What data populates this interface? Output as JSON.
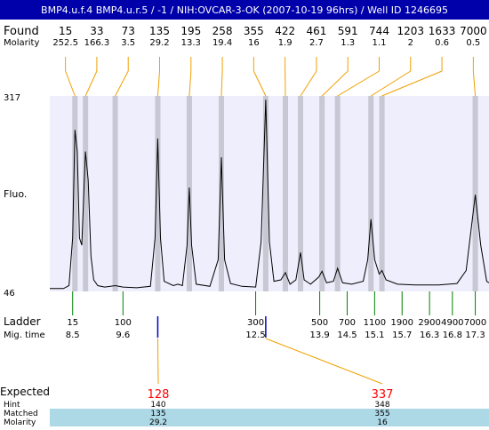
{
  "title": "BMP4.u.f.4  BMP4.u.r.5 / -1 / NIH:OVCAR-3-OK (2007-10-19 96hrs) / Well ID 1246695",
  "labels": {
    "found": "Found",
    "molarity": "Molarity",
    "fluo": "Fluo.",
    "ladder": "Ladder",
    "mig_time": "Mig. time",
    "expected": "Expected",
    "hint": "Hint",
    "matched": "Matched",
    "molarity_bottom": "Molarity"
  },
  "colors": {
    "plot_bg": "#eeeefc",
    "band": "#c8c8d4",
    "title_bar": "#0000aa",
    "connector": "#f0a000",
    "ladder_tick": "#008000",
    "marker_tick": "#0000cc",
    "expected_text": "#ff0000",
    "highlight_row": "#add8e6"
  },
  "chart_data": {
    "type": "line",
    "yaxis": {
      "min": 46,
      "max": 317
    },
    "xaxis": {
      "min": 8.0,
      "max": 17.6,
      "unit": "Mig. time"
    },
    "found_peaks": [
      {
        "size": "15",
        "molarity": "252.5",
        "time": 8.55
      },
      {
        "size": "33",
        "molarity": "166.3",
        "time": 8.78
      },
      {
        "size": "73",
        "molarity": "3.5",
        "time": 9.43
      },
      {
        "size": "135",
        "molarity": "29.2",
        "time": 10.36
      },
      {
        "size": "195",
        "molarity": "13.3",
        "time": 11.05
      },
      {
        "size": "258",
        "molarity": "19.4",
        "time": 11.75
      },
      {
        "size": "355",
        "molarity": "16",
        "time": 12.72
      },
      {
        "size": "422",
        "molarity": "1.9",
        "time": 13.15
      },
      {
        "size": "461",
        "molarity": "2.7",
        "time": 13.48
      },
      {
        "size": "591",
        "molarity": "1.3",
        "time": 13.95
      },
      {
        "size": "744",
        "molarity": "1.1",
        "time": 14.29
      },
      {
        "size": "1203",
        "molarity": "2",
        "time": 15.02
      },
      {
        "size": "1633",
        "molarity": "0.6",
        "time": 15.26
      },
      {
        "size": "7000",
        "molarity": "0.5",
        "time": 17.3
      }
    ],
    "ladder": [
      {
        "size": "15",
        "time": "8.5",
        "t": 8.5
      },
      {
        "size": "100",
        "time": "9.6",
        "t": 9.6
      },
      {
        "size": "300",
        "time": "12.5",
        "t": 12.5
      },
      {
        "size": "500",
        "time": "13.9",
        "t": 13.9
      },
      {
        "size": "700",
        "time": "14.5",
        "t": 14.5
      },
      {
        "size": "1100",
        "time": "15.1",
        "t": 15.1
      },
      {
        "size": "1900",
        "time": "15.7",
        "t": 15.7
      },
      {
        "size": "2900",
        "time": "16.3",
        "t": 16.3
      },
      {
        "size": "4900",
        "time": "16.8",
        "t": 16.8
      },
      {
        "size": "7000",
        "time": "17.3",
        "t": 17.3
      }
    ],
    "expected": [
      {
        "expected": "128",
        "hint": "140",
        "matched": "135",
        "molarity": "29.2",
        "time": 10.36
      },
      {
        "expected": "337",
        "hint": "348",
        "matched": "355",
        "molarity": "16",
        "time": 12.72
      }
    ],
    "trace": [
      [
        8.0,
        50
      ],
      [
        8.3,
        50
      ],
      [
        8.42,
        54
      ],
      [
        8.5,
        120
      ],
      [
        8.55,
        270
      ],
      [
        8.6,
        240
      ],
      [
        8.65,
        120
      ],
      [
        8.7,
        110
      ],
      [
        8.78,
        240
      ],
      [
        8.84,
        200
      ],
      [
        8.9,
        95
      ],
      [
        8.96,
        62
      ],
      [
        9.05,
        54
      ],
      [
        9.2,
        52
      ],
      [
        9.43,
        54
      ],
      [
        9.6,
        52
      ],
      [
        9.9,
        51
      ],
      [
        10.2,
        53
      ],
      [
        10.3,
        120
      ],
      [
        10.36,
        258
      ],
      [
        10.42,
        120
      ],
      [
        10.5,
        60
      ],
      [
        10.7,
        54
      ],
      [
        10.8,
        56
      ],
      [
        10.9,
        54
      ],
      [
        11.0,
        110
      ],
      [
        11.05,
        190
      ],
      [
        11.1,
        110
      ],
      [
        11.2,
        56
      ],
      [
        11.5,
        53
      ],
      [
        11.68,
        90
      ],
      [
        11.75,
        232
      ],
      [
        11.82,
        90
      ],
      [
        11.95,
        57
      ],
      [
        12.2,
        53
      ],
      [
        12.5,
        52
      ],
      [
        12.62,
        115
      ],
      [
        12.72,
        312
      ],
      [
        12.8,
        115
      ],
      [
        12.9,
        60
      ],
      [
        13.05,
        62
      ],
      [
        13.15,
        72
      ],
      [
        13.25,
        56
      ],
      [
        13.38,
        62
      ],
      [
        13.48,
        100
      ],
      [
        13.56,
        62
      ],
      [
        13.7,
        56
      ],
      [
        13.88,
        66
      ],
      [
        13.95,
        74
      ],
      [
        14.05,
        58
      ],
      [
        14.2,
        60
      ],
      [
        14.29,
        78
      ],
      [
        14.4,
        58
      ],
      [
        14.6,
        56
      ],
      [
        14.85,
        60
      ],
      [
        14.95,
        90
      ],
      [
        15.02,
        146
      ],
      [
        15.1,
        90
      ],
      [
        15.2,
        70
      ],
      [
        15.26,
        75
      ],
      [
        15.35,
        62
      ],
      [
        15.6,
        56
      ],
      [
        16.0,
        55
      ],
      [
        16.5,
        55
      ],
      [
        16.9,
        57
      ],
      [
        17.1,
        75
      ],
      [
        17.3,
        180
      ],
      [
        17.42,
        110
      ],
      [
        17.55,
        60
      ],
      [
        17.6,
        58
      ]
    ]
  }
}
